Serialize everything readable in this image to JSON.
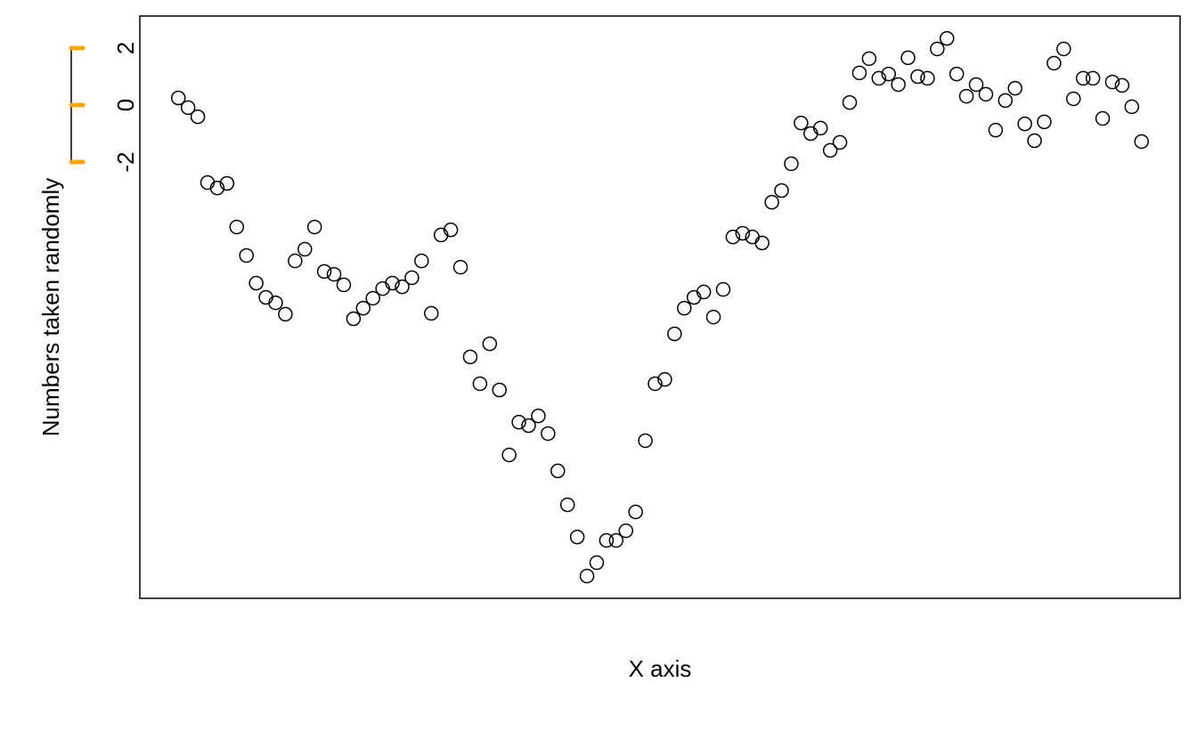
{
  "chart_data": {
    "type": "scatter",
    "xlabel": "X axis",
    "ylabel": "Numbers taken randomly",
    "x": [
      1,
      2,
      3,
      4,
      5,
      6,
      7,
      8,
      9,
      10,
      11,
      12,
      13,
      14,
      15,
      16,
      17,
      18,
      19,
      20,
      21,
      22,
      23,
      24,
      25,
      26,
      27,
      28,
      29,
      30,
      31,
      32,
      33,
      34,
      35,
      36,
      37,
      38,
      39,
      40,
      41,
      42,
      43,
      44,
      45,
      46,
      47,
      48,
      49,
      50,
      51,
      52,
      53,
      54,
      55,
      56,
      57,
      58,
      59,
      60,
      61,
      62,
      63,
      64,
      65,
      66,
      67,
      68,
      69,
      70,
      71,
      72,
      73,
      74,
      75,
      76,
      77,
      78,
      79,
      80,
      81,
      82,
      83,
      84,
      85,
      86,
      87,
      88,
      89,
      90,
      91,
      92,
      93,
      94,
      95,
      96,
      97,
      98,
      99,
      100
    ],
    "values": [
      0.25,
      -0.09,
      -0.41,
      -2.72,
      -2.91,
      -2.75,
      -4.28,
      -5.28,
      -6.25,
      -6.75,
      -6.94,
      -7.34,
      -5.47,
      -5.06,
      -4.28,
      -5.84,
      -5.94,
      -6.31,
      -7.5,
      -7.13,
      -6.78,
      -6.44,
      -6.25,
      -6.38,
      -6.06,
      -5.47,
      -7.31,
      -4.56,
      -4.38,
      -5.69,
      -8.84,
      -9.78,
      -8.38,
      -10,
      -12.28,
      -11.13,
      -11.25,
      -10.91,
      -11.53,
      -12.84,
      -14.03,
      -15.16,
      -16.53,
      -16.06,
      -15.28,
      -15.28,
      -14.94,
      -14.28,
      -11.78,
      -9.78,
      -9.63,
      -8.03,
      -7.13,
      -6.75,
      -6.56,
      -7.44,
      -6.47,
      -4.63,
      -4.5,
      -4.63,
      -4.84,
      -3.41,
      -3,
      -2.06,
      -0.63,
      -1,
      -0.81,
      -1.59,
      -1.31,
      0.09,
      1.13,
      1.63,
      0.94,
      1.09,
      0.72,
      1.66,
      1,
      0.94,
      1.97,
      2.34,
      1.09,
      0.31,
      0.72,
      0.38,
      -0.88,
      0.16,
      0.59,
      -0.66,
      -1.25,
      -0.59,
      1.47,
      1.97,
      0.22,
      0.94,
      0.94,
      -0.47,
      0.81,
      0.69,
      -0.06,
      -1.28
    ],
    "color": "#000000",
    "xlim": [
      -2.96,
      103.96
    ],
    "ylim": [
      -17.3125,
      3.125
    ],
    "yticks": [
      -2,
      0,
      2
    ],
    "ytick_color": "#ffa500"
  }
}
